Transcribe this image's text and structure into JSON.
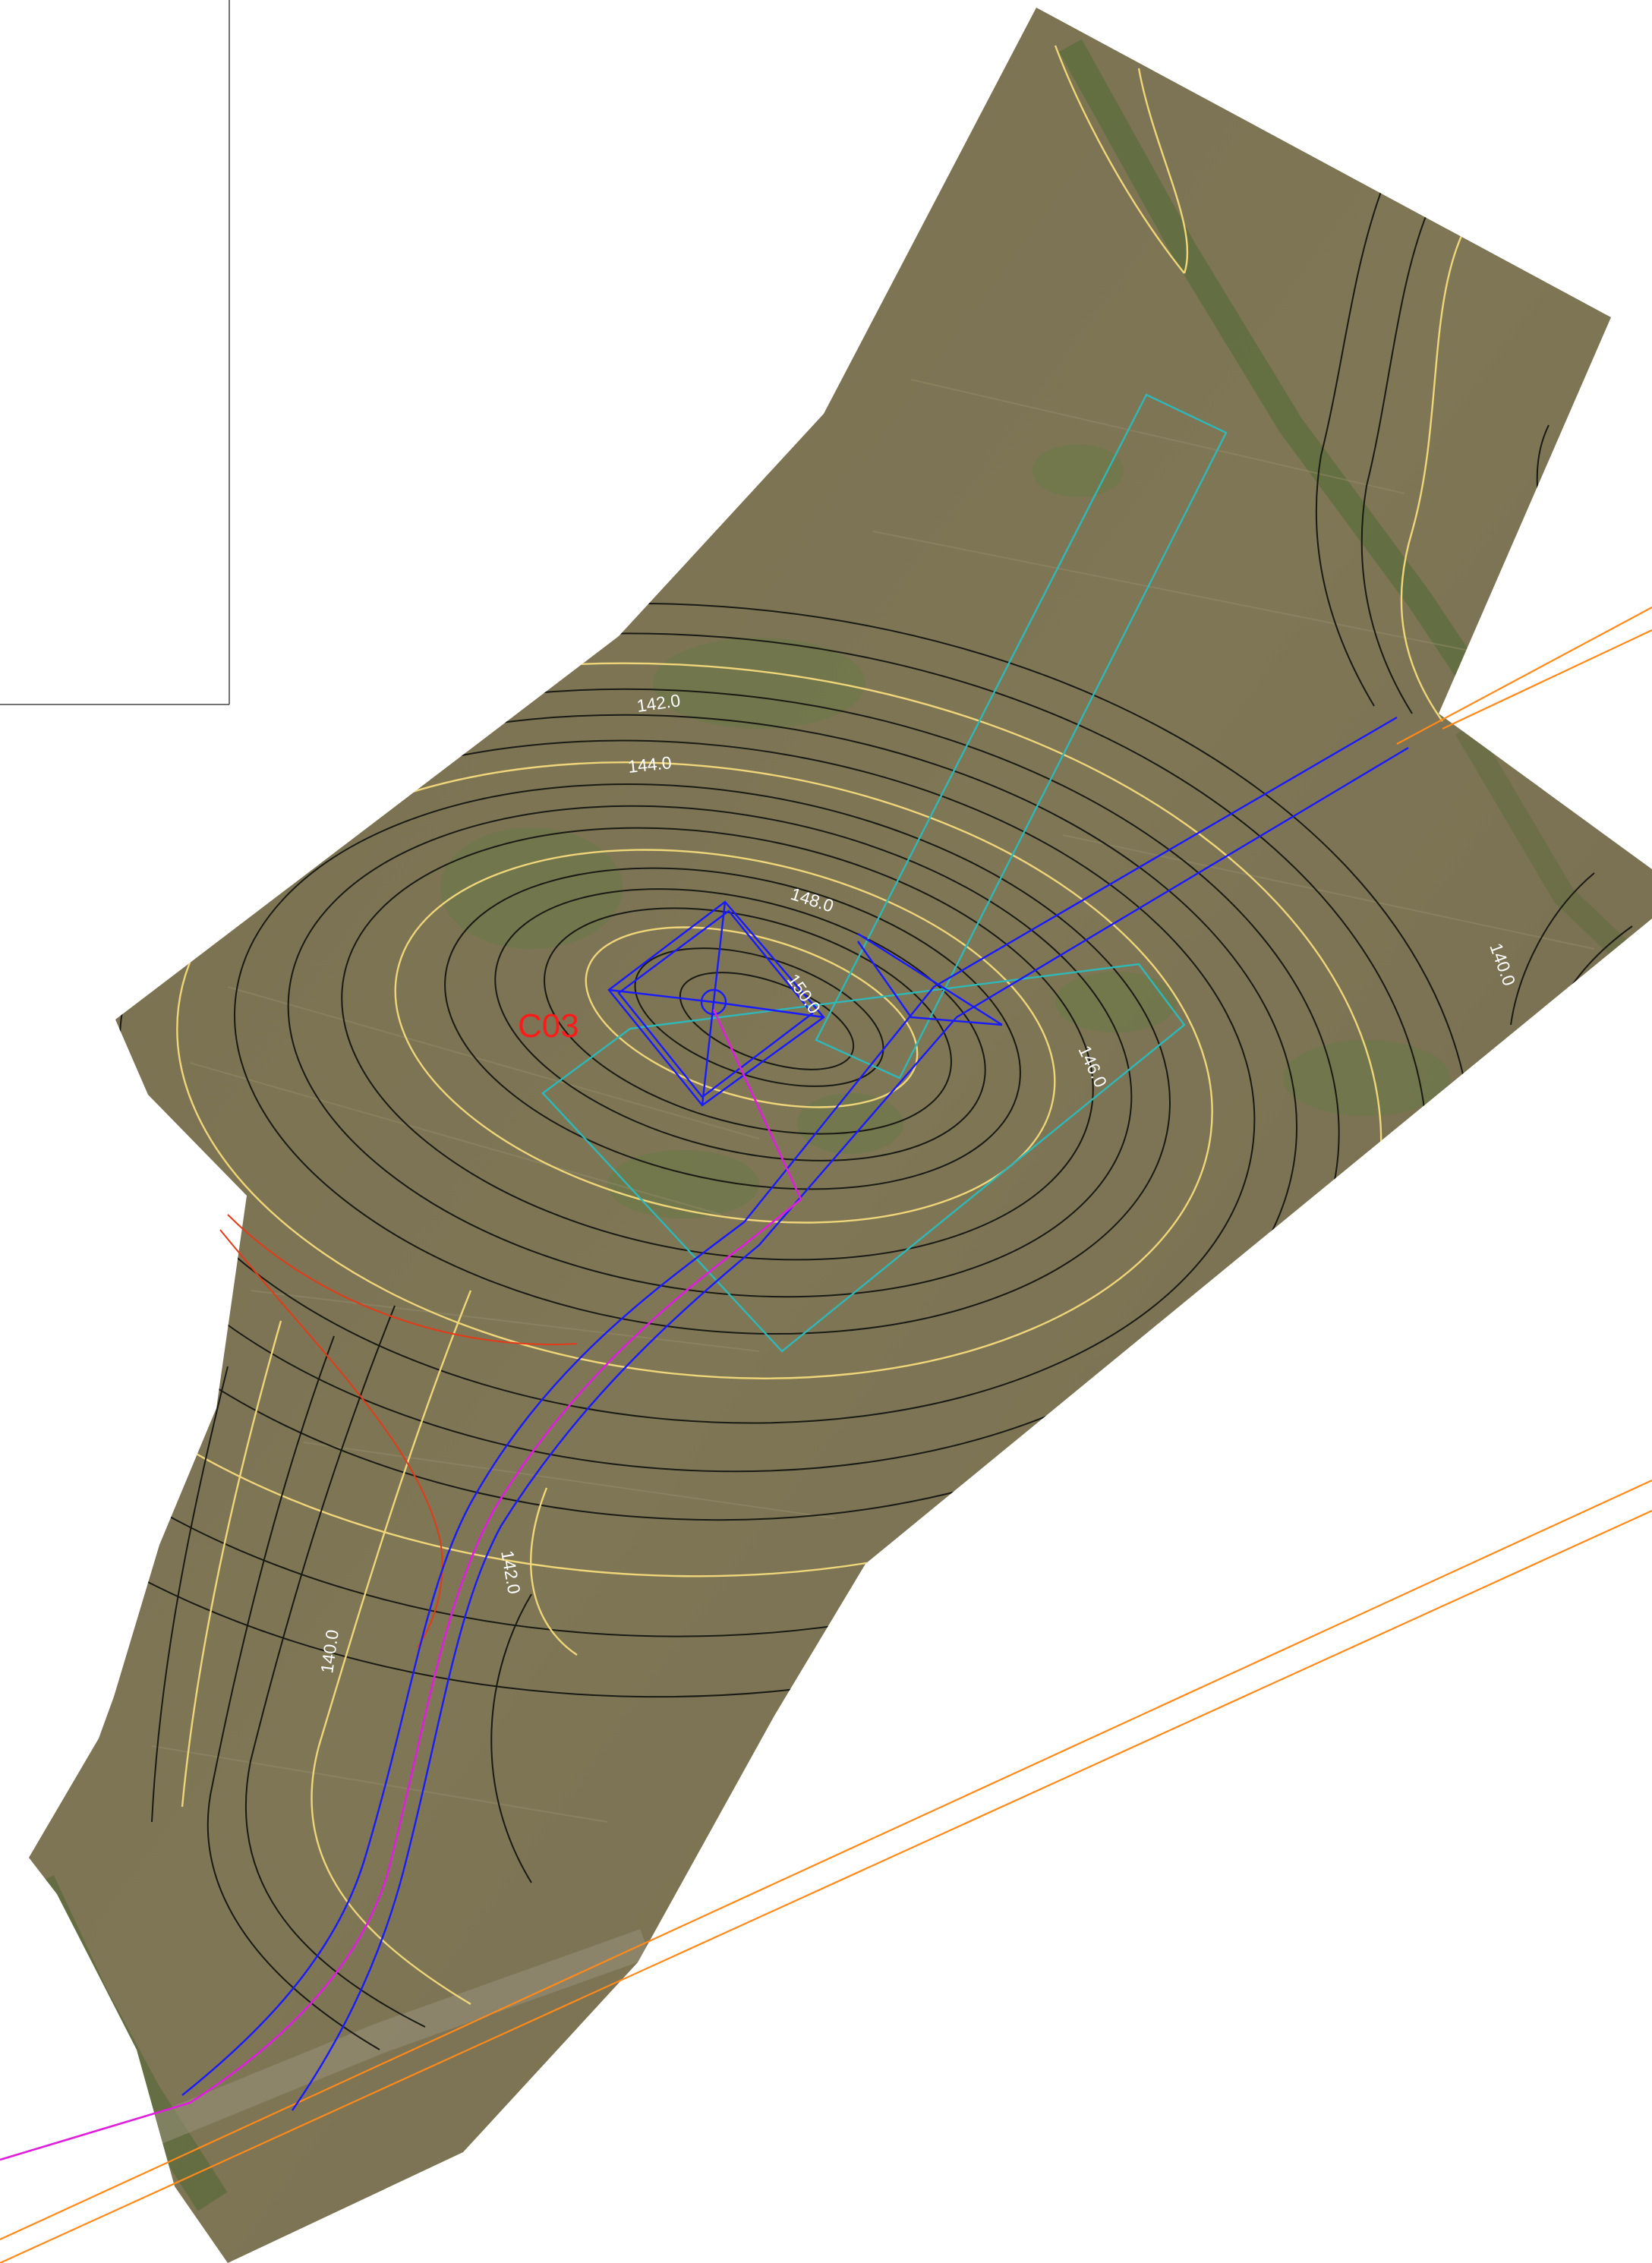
{
  "map": {
    "site_label": "C03",
    "contour_labels": [
      {
        "id": "142-north",
        "text": "142.0"
      },
      {
        "id": "144-north",
        "text": "144.0"
      },
      {
        "id": "148-summit",
        "text": "148.0"
      },
      {
        "id": "150-summit",
        "text": "150.0"
      },
      {
        "id": "146-east",
        "text": "146.0"
      },
      {
        "id": "140-east",
        "text": "140.0"
      },
      {
        "id": "142-south",
        "text": "142.0"
      },
      {
        "id": "140-south",
        "text": "140.0"
      }
    ],
    "colors": {
      "aerial_base": "#7c7453",
      "aerial_light": "#8a8060",
      "vegetation": "#5f7a3e",
      "contour_minor": "#1a1a14",
      "contour_major": "#f0d67a",
      "label_text": "#ffffff",
      "site_label": "#ff1a1a",
      "road_blue": "#1a1aff",
      "cable_magenta": "#e01ee0",
      "platform_cyan": "#2fb8b8",
      "powerline_orange": "#ff8a1a",
      "buffer_red": "#e23b1a",
      "frame_line": "#444444"
    }
  }
}
